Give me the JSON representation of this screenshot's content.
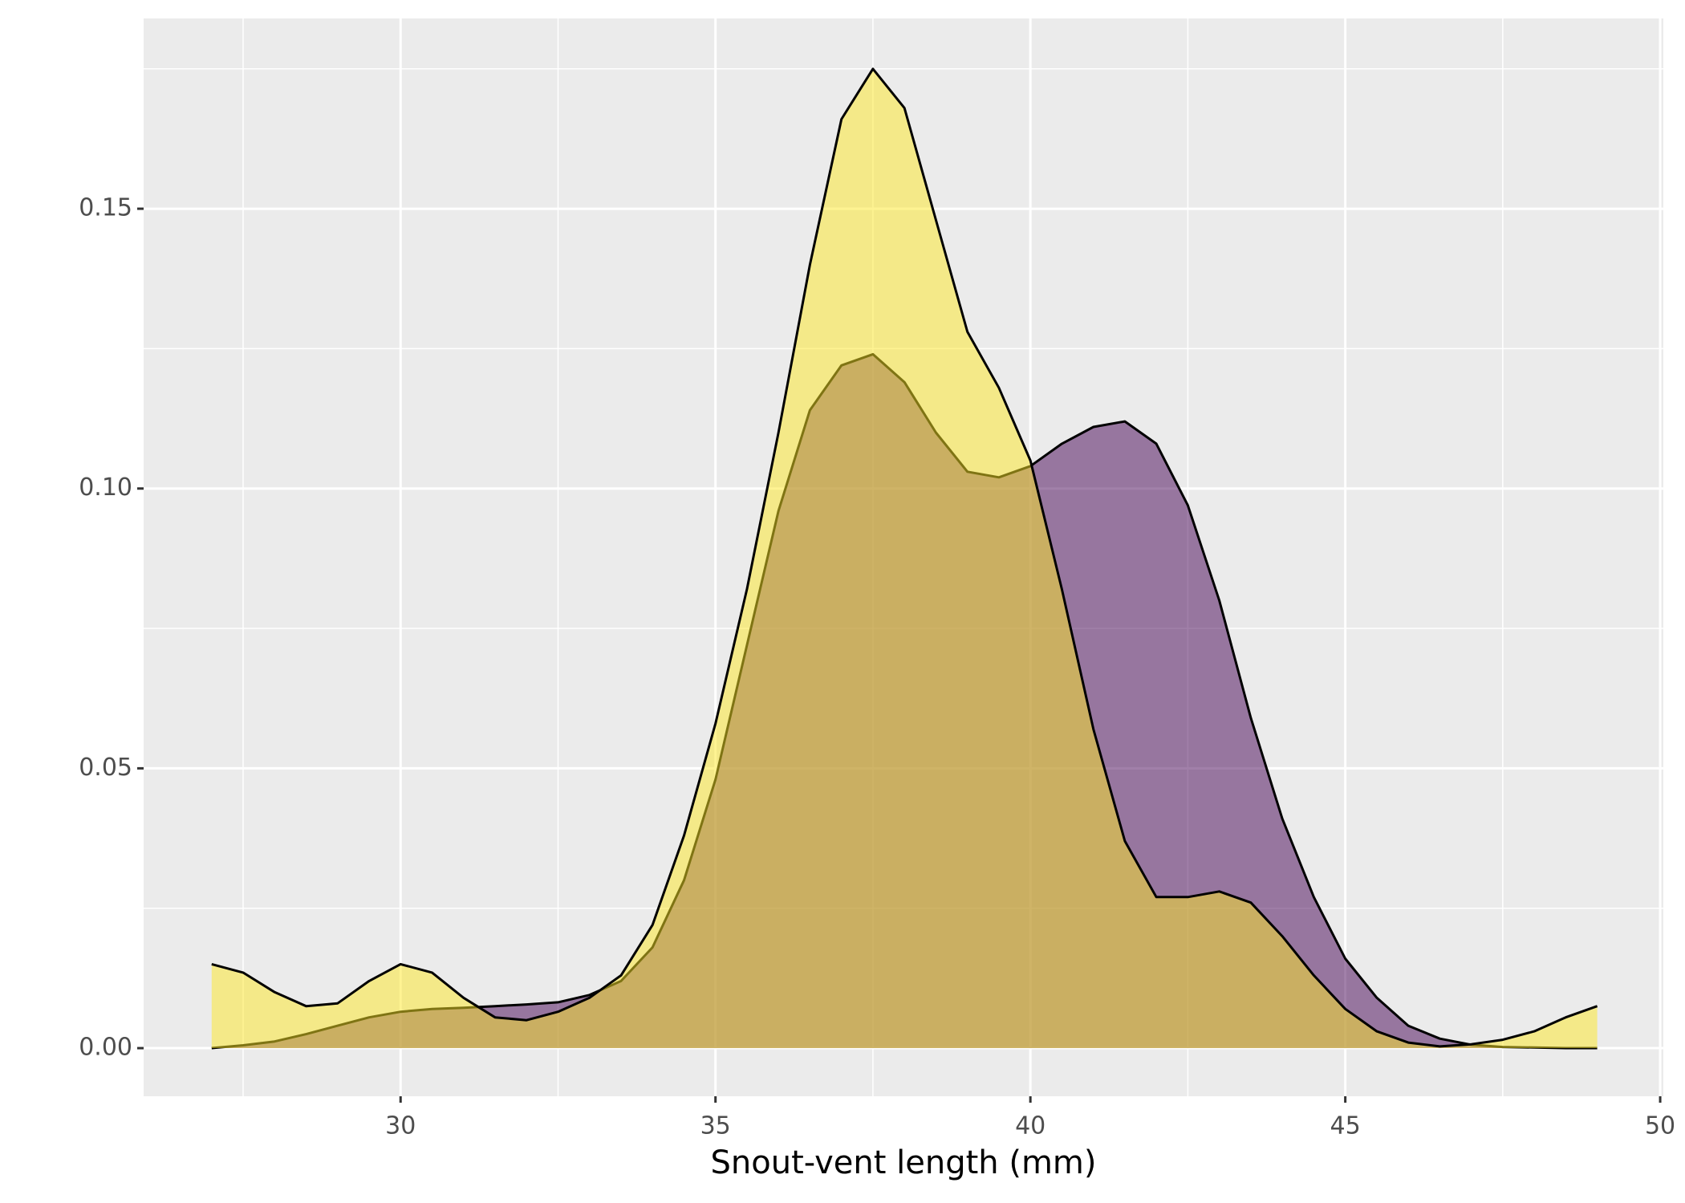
{
  "chart_data": {
    "type": "density",
    "x_label": "Snout-vent length (mm)",
    "x": [
      27,
      27.5,
      28,
      28.5,
      29,
      29.5,
      30,
      30.5,
      31,
      31.5,
      32,
      32.5,
      33,
      33.5,
      34,
      34.5,
      35,
      35.5,
      36,
      36.5,
      37,
      37.5,
      38,
      38.5,
      39,
      39.5,
      40,
      40.5,
      41,
      41.5,
      42,
      42.5,
      43,
      43.5,
      44,
      44.5,
      45,
      45.5,
      46,
      46.5,
      47,
      47.5,
      48,
      48.5,
      49
    ],
    "series": [
      {
        "color": "#440154",
        "values": [
          0.0,
          0.0005,
          0.0012,
          0.0025,
          0.004,
          0.0055,
          0.0065,
          0.007,
          0.0072,
          0.0075,
          0.0078,
          0.0082,
          0.0095,
          0.012,
          0.018,
          0.03,
          0.048,
          0.072,
          0.096,
          0.114,
          0.122,
          0.124,
          0.119,
          0.11,
          0.103,
          0.102,
          0.104,
          0.108,
          0.111,
          0.112,
          0.108,
          0.097,
          0.08,
          0.059,
          0.041,
          0.027,
          0.016,
          0.009,
          0.004,
          0.0017,
          0.0006,
          0.0002,
          0.0001,
          0.0,
          0.0
        ]
      },
      {
        "color": "#FDE725",
        "values": [
          0.015,
          0.0135,
          0.01,
          0.0075,
          0.008,
          0.012,
          0.015,
          0.0135,
          0.009,
          0.0055,
          0.005,
          0.0065,
          0.009,
          0.013,
          0.022,
          0.038,
          0.058,
          0.082,
          0.11,
          0.14,
          0.166,
          0.175,
          0.168,
          0.148,
          0.128,
          0.118,
          0.105,
          0.082,
          0.057,
          0.037,
          0.027,
          0.027,
          0.028,
          0.026,
          0.02,
          0.013,
          0.007,
          0.003,
          0.001,
          0.0003,
          0.0007,
          0.0015,
          0.003,
          0.0055,
          0.0075
        ]
      }
    ],
    "alpha": 0.5,
    "xlim": [
      25.92,
      50.05
    ],
    "ylim": [
      -0.0086,
      0.184
    ],
    "xticks": [
      30,
      35,
      40,
      45,
      50
    ],
    "yticks": [
      {
        "value": 0,
        "label": "0.00"
      },
      {
        "value": 0.05,
        "label": "0.05"
      },
      {
        "value": 0.1,
        "label": "0.10"
      },
      {
        "value": 0.15,
        "label": "0.15"
      }
    ],
    "x_minor_grid": [
      27.5,
      32.5,
      37.5,
      42.5,
      47.5
    ],
    "y_minor_grid": [
      0.025,
      0.075,
      0.125,
      0.175
    ],
    "grid": true
  }
}
